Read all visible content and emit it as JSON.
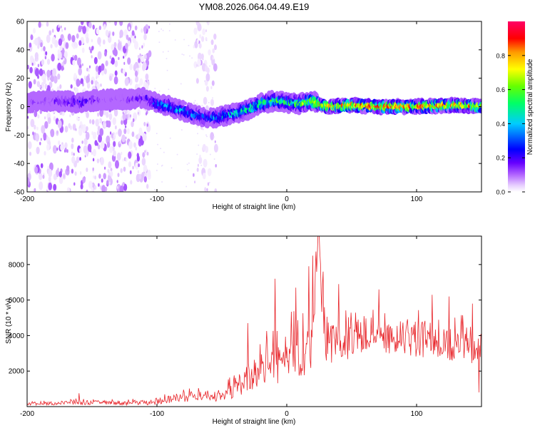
{
  "title": "YM08.2026.064.04.49.E19",
  "chart_data": [
    {
      "type": "heatmap",
      "title": "YM08.2026.064.04.49.E19",
      "xlabel": "Height of straight line (km)",
      "ylabel": "Frequency (Hz)",
      "xlim": [
        -200,
        150
      ],
      "ylim": [
        -60,
        60
      ],
      "xticks": [
        -200,
        -100,
        0,
        100
      ],
      "yticks": [
        -60,
        -40,
        -20,
        0,
        20,
        40,
        60
      ],
      "colorbar": {
        "label": "Normalized spectral amplitude",
        "range": [
          0,
          1
        ],
        "ticks": [
          "0.0",
          "0.2",
          "0.4",
          "0.6",
          "0.8"
        ],
        "colormap": [
          "#ffffff",
          "#e6ccff",
          "#b366ff",
          "#6600ff",
          "#0000ff",
          "#00ccff",
          "#00ff66",
          "#66ff00",
          "#ffff00",
          "#ff9900",
          "#ff0000",
          "#ff0066"
        ]
      },
      "ridge": {
        "description": "frequency centre of main energy band vs height",
        "x": [
          -200,
          -180,
          -160,
          -140,
          -120,
          -110,
          -100,
          -90,
          -80,
          -70,
          -60,
          -50,
          -40,
          -30,
          -20,
          -10,
          0,
          10,
          20,
          30,
          50,
          70,
          100,
          130,
          150
        ],
        "y": [
          3,
          4,
          3,
          5,
          5,
          6,
          2,
          0,
          -3,
          -6,
          -8,
          -7,
          -5,
          -2,
          2,
          4,
          3,
          2,
          4,
          0,
          1,
          0,
          0,
          1,
          0
        ],
        "peak_amplitude": [
          0.2,
          0.25,
          0.35,
          0.2,
          0.25,
          0.3,
          0.45,
          0.5,
          0.45,
          0.45,
          0.4,
          0.5,
          0.55,
          0.55,
          0.6,
          0.6,
          0.55,
          0.65,
          0.7,
          0.85,
          0.9,
          0.95,
          0.9,
          0.9,
          0.85
        ]
      },
      "noise_regions": [
        {
          "x": [
            -200,
            -105
          ],
          "density": 0.8
        },
        {
          "x": [
            -72,
            -54
          ],
          "density": 0.5
        }
      ]
    },
    {
      "type": "line",
      "xlabel": "Height of straight line (km)",
      "ylabel": "SNR (10 * v/v)",
      "xlim": [
        -200,
        150
      ],
      "ylim": [
        0,
        9600
      ],
      "xticks": [
        -200,
        -100,
        0,
        100
      ],
      "yticks": [
        2000,
        4000,
        6000,
        8000
      ],
      "color": "#e8262b",
      "series": [
        {
          "name": "SNR",
          "x": [
            -200,
            -180,
            -160,
            -150,
            -120,
            -100,
            -90,
            -80,
            -70,
            -60,
            -50,
            -40,
            -30,
            -20,
            -10,
            0,
            10,
            20,
            22,
            24,
            30,
            40,
            50,
            60,
            70,
            80,
            90,
            100,
            110,
            120,
            130,
            140,
            150
          ],
          "y": [
            150,
            180,
            250,
            220,
            200,
            250,
            420,
            500,
            600,
            650,
            480,
            1100,
            1600,
            2000,
            2500,
            2600,
            3100,
            3500,
            6500,
            9500,
            3900,
            3400,
            3800,
            4000,
            3900,
            3800,
            3900,
            3800,
            3700,
            3400,
            3300,
            3600,
            3300
          ],
          "spread": [
            150,
            200,
            300,
            250,
            250,
            300,
            450,
            500,
            600,
            550,
            500,
            1200,
            1600,
            2200,
            2600,
            2800,
            3000,
            3500,
            3200,
            3000,
            2800,
            2200,
            2000,
            2000,
            1900,
            1900,
            1900,
            2000,
            2000,
            2000,
            2100,
            2200,
            2300
          ],
          "peaks": [
            {
              "x": -160,
              "y": 750
            },
            {
              "x": -30,
              "y": 4700
            },
            {
              "x": -9,
              "y": 7200
            },
            {
              "x": 7,
              "y": 6700
            },
            {
              "x": 17,
              "y": 7900
            },
            {
              "x": 20,
              "y": 8500
            },
            {
              "x": 24,
              "y": 9600
            },
            {
              "x": 28,
              "y": 7600
            },
            {
              "x": 40,
              "y": 6900
            },
            {
              "x": 71,
              "y": 6600
            },
            {
              "x": 112,
              "y": 6300
            },
            {
              "x": 125,
              "y": 6200
            },
            {
              "x": 143,
              "y": 5800
            },
            {
              "x": 148,
              "y": 800
            }
          ]
        }
      ]
    }
  ]
}
